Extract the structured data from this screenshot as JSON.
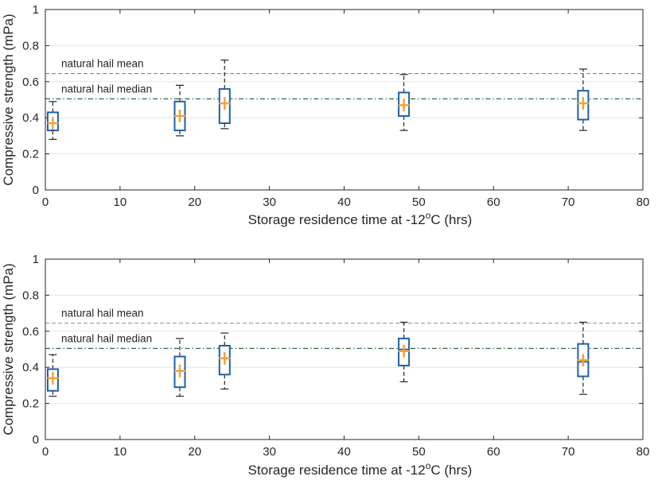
{
  "chart_data": [
    {
      "type": "box",
      "xlabel": "Storage residence time at -12°C (hrs)",
      "xlabel_parts": {
        "pre": "Storage residence time at -12",
        "sup": "o",
        "post": "C (hrs)"
      },
      "ylabel": "Compressive strength (mPa)",
      "xlim": [
        0,
        80
      ],
      "ylim": [
        0,
        1
      ],
      "xticks": [
        0,
        10,
        20,
        30,
        40,
        50,
        60,
        70,
        80
      ],
      "yticks": [
        0,
        0.2,
        0.4,
        0.6,
        0.8,
        1
      ],
      "grid": "horizontal",
      "reference_lines": [
        {
          "name": "natural hail mean",
          "label": "natural hail mean",
          "value": 0.645,
          "style": "dashed",
          "color": "#6b8fb5"
        },
        {
          "name": "natural hail median",
          "label": "natural hail median",
          "value": 0.505,
          "style": "dash-dot",
          "color": "#2e6b3e"
        }
      ],
      "boxes": [
        {
          "x": 1,
          "whisker_low": 0.28,
          "q1": 0.33,
          "median": 0.37,
          "q3": 0.43,
          "whisker_high": 0.49,
          "mean": 0.37
        },
        {
          "x": 18,
          "whisker_low": 0.3,
          "q1": 0.33,
          "median": 0.41,
          "q3": 0.49,
          "whisker_high": 0.58,
          "mean": 0.41
        },
        {
          "x": 24,
          "whisker_low": 0.34,
          "q1": 0.37,
          "median": 0.48,
          "q3": 0.56,
          "whisker_high": 0.72,
          "mean": 0.48
        },
        {
          "x": 48,
          "whisker_low": 0.33,
          "q1": 0.41,
          "median": 0.47,
          "q3": 0.54,
          "whisker_high": 0.64,
          "mean": 0.47
        },
        {
          "x": 72,
          "whisker_low": 0.33,
          "q1": 0.39,
          "median": 0.48,
          "q3": 0.55,
          "whisker_high": 0.67,
          "mean": 0.48
        }
      ]
    },
    {
      "type": "box",
      "xlabel": "Storage residence time at -12°C (hrs)",
      "xlabel_parts": {
        "pre": "Storage residence time at -12",
        "sup": "o",
        "post": "C (hrs)"
      },
      "ylabel": "Compressive strength (mPa)",
      "xlim": [
        0,
        80
      ],
      "ylim": [
        0,
        1
      ],
      "xticks": [
        0,
        10,
        20,
        30,
        40,
        50,
        60,
        70,
        80
      ],
      "yticks": [
        0,
        0.2,
        0.4,
        0.6,
        0.8,
        1
      ],
      "grid": "horizontal",
      "reference_lines": [
        {
          "name": "natural hail mean",
          "label": "natural hail mean",
          "value": 0.645,
          "style": "dashed",
          "color": "#8e9cbe"
        },
        {
          "name": "natural hail median",
          "label": "natural hail median",
          "value": 0.505,
          "style": "dash-dot",
          "color": "#2e6b3e"
        }
      ],
      "boxes": [
        {
          "x": 1,
          "whisker_low": 0.24,
          "q1": 0.27,
          "median": 0.34,
          "q3": 0.39,
          "whisker_high": 0.47,
          "mean": 0.34
        },
        {
          "x": 18,
          "whisker_low": 0.24,
          "q1": 0.29,
          "median": 0.38,
          "q3": 0.46,
          "whisker_high": 0.56,
          "mean": 0.38
        },
        {
          "x": 24,
          "whisker_low": 0.28,
          "q1": 0.36,
          "median": 0.45,
          "q3": 0.52,
          "whisker_high": 0.59,
          "mean": 0.45
        },
        {
          "x": 48,
          "whisker_low": 0.32,
          "q1": 0.41,
          "median": 0.5,
          "q3": 0.56,
          "whisker_high": 0.65,
          "mean": 0.49
        },
        {
          "x": 72,
          "whisker_low": 0.25,
          "q1": 0.35,
          "median": 0.43,
          "q3": 0.53,
          "whisker_high": 0.65,
          "mean": 0.44
        }
      ]
    }
  ],
  "colors": {
    "box": "#1f5fa8",
    "whisker": "#333333",
    "mean_marker": "#f5a030",
    "grid": "#e6e6e6",
    "axes": "#262626"
  }
}
